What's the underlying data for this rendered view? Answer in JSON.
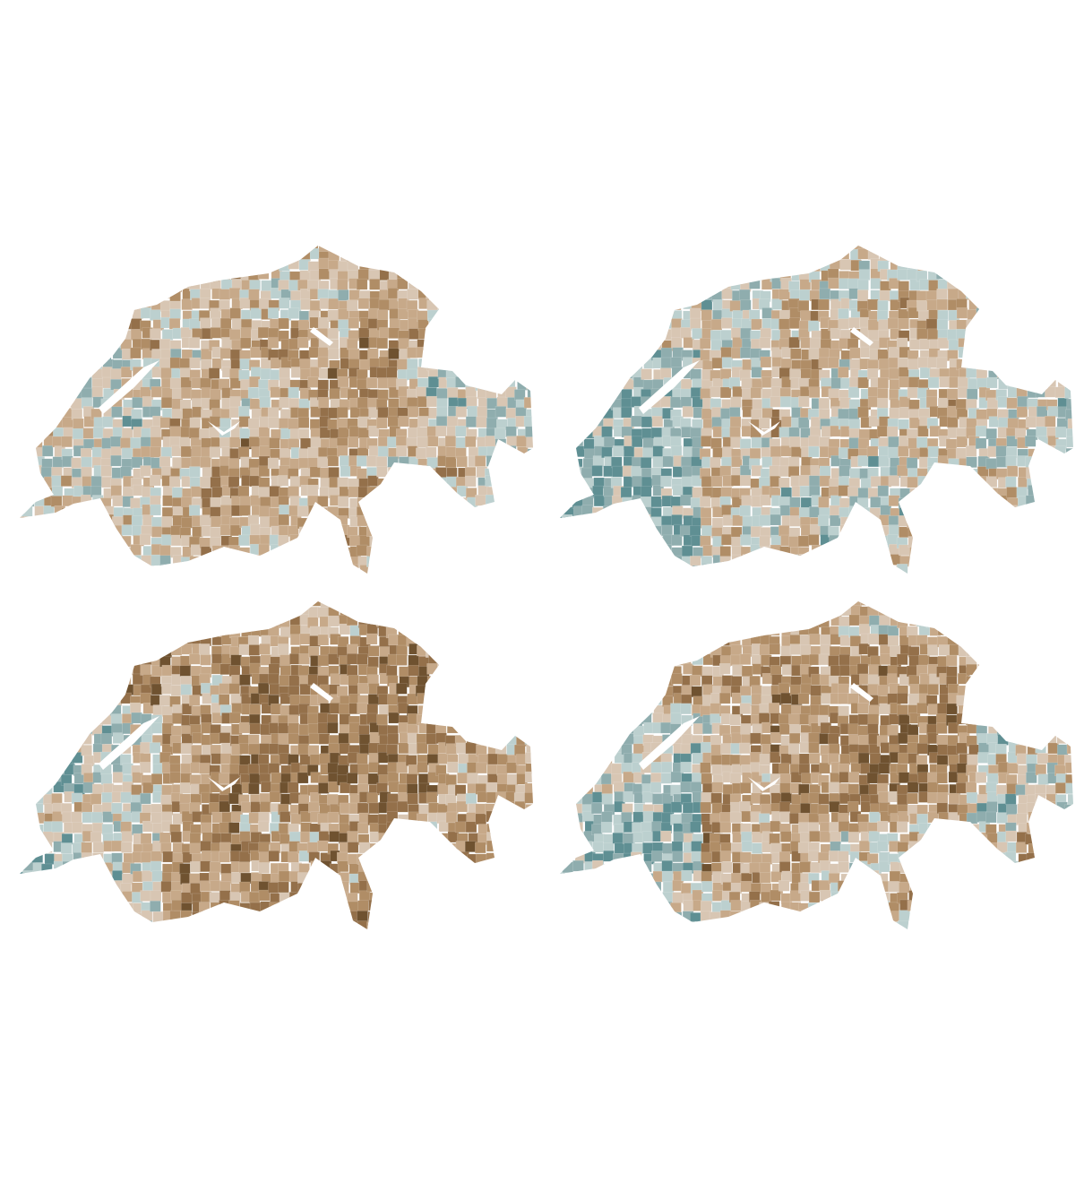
{
  "palette": [
    "#5f8f93",
    "#8fadae",
    "#bcd0cf",
    "#d8c6b3",
    "#c7a989",
    "#b08d66",
    "#94704a",
    "#6f5230"
  ]
}
